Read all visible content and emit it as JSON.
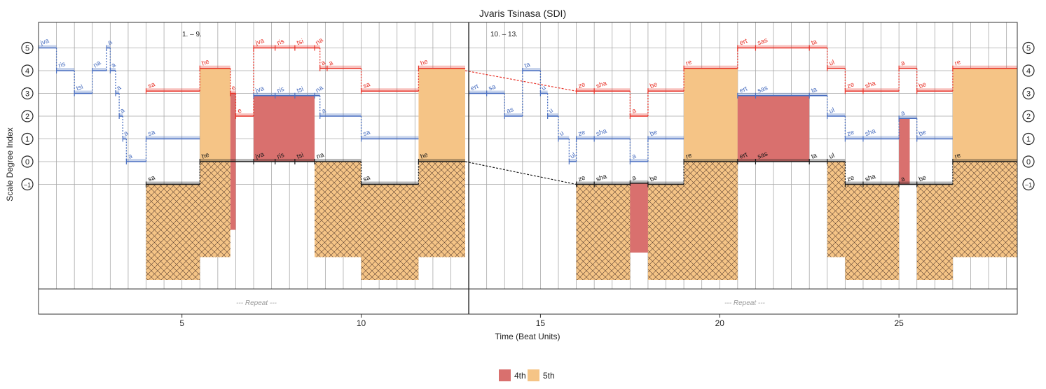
{
  "chart_data": {
    "type": "step-line",
    "title": "Jvaris  Tsinasa (SDI)",
    "xlabel": "Time (Beat Units)",
    "ylabel": "Scale Degree Index",
    "xlim": [
      1,
      28.3
    ],
    "ylim": [
      -5.5,
      6.3
    ],
    "x_ticks": [
      5,
      10,
      15,
      20,
      25
    ],
    "y_ticks": [
      5,
      4,
      3,
      2,
      1,
      0,
      -1
    ],
    "y_tick_labels": [
      "5",
      "4",
      "3",
      "2",
      "1",
      "0",
      "−1"
    ],
    "section_labels": [
      "1. – 9.",
      "10. – 13."
    ],
    "repeat_label": "--- Repeat ---",
    "legend": {
      "position": "bottom-center",
      "items": [
        {
          "name": "4th",
          "color": "#d9706e"
        },
        {
          "name": "5th",
          "color": "#f5c486"
        }
      ]
    },
    "colors": {
      "top": "#e8342a",
      "middle": "#4a6fc0",
      "bottom": "#1a1a1a",
      "fourth": "#d9706e",
      "fifth": "#f5c486",
      "grid": "#a8a8a8"
    },
    "series": [
      {
        "name": "top",
        "segments": [
          {
            "x0": 4.0,
            "x1": 5.5,
            "y": 3.1,
            "text": "sa"
          },
          {
            "x0": 5.5,
            "x1": 6.35,
            "y": 4.1,
            "text": "he"
          },
          {
            "x0": 6.35,
            "x1": 6.5,
            "y": 3.0,
            "text": "e"
          },
          {
            "x0": 6.5,
            "x1": 7.0,
            "y": 2.0,
            "text": "e"
          },
          {
            "x0": 7.0,
            "x1": 7.6,
            "y": 5.0,
            "text": "jva"
          },
          {
            "x0": 7.6,
            "x1": 8.15,
            "y": 5.0,
            "text": "ris"
          },
          {
            "x0": 8.15,
            "x1": 8.7,
            "y": 5.0,
            "text": "tsi"
          },
          {
            "x0": 8.7,
            "x1": 8.85,
            "y": 5.0,
            "text": "na"
          },
          {
            "x0": 8.85,
            "x1": 9.05,
            "y": 4.1,
            "text": "a"
          },
          {
            "x0": 9.05,
            "x1": 10.0,
            "y": 4.1,
            "text": "a"
          },
          {
            "x0": 10.0,
            "x1": 11.6,
            "y": 3.1,
            "text": "sa"
          },
          {
            "x0": 11.6,
            "x1": 12.9,
            "y": 4.1,
            "text": "he"
          },
          {
            "x0": 16.0,
            "x1": 16.5,
            "y": 3.1,
            "text": "ze"
          },
          {
            "x0": 16.5,
            "x1": 17.5,
            "y": 3.1,
            "text": "sha"
          },
          {
            "x0": 17.5,
            "x1": 18.0,
            "y": 2.0,
            "text": "a"
          },
          {
            "x0": 18.0,
            "x1": 19.0,
            "y": 3.1,
            "text": "be"
          },
          {
            "x0": 19.0,
            "x1": 20.5,
            "y": 4.1,
            "text": "re"
          },
          {
            "x0": 20.5,
            "x1": 21.0,
            "y": 5.0,
            "text": "ert"
          },
          {
            "x0": 21.0,
            "x1": 22.5,
            "y": 5.0,
            "text": "sas"
          },
          {
            "x0": 22.5,
            "x1": 23.0,
            "y": 5.0,
            "text": "ta"
          },
          {
            "x0": 23.0,
            "x1": 23.5,
            "y": 4.1,
            "text": "ul"
          },
          {
            "x0": 23.5,
            "x1": 24.0,
            "y": 3.1,
            "text": "ze"
          },
          {
            "x0": 24.0,
            "x1": 25.0,
            "y": 3.1,
            "text": "sha"
          },
          {
            "x0": 25.0,
            "x1": 25.5,
            "y": 4.1,
            "text": "a"
          },
          {
            "x0": 25.5,
            "x1": 26.5,
            "y": 3.1,
            "text": "be"
          },
          {
            "x0": 26.5,
            "x1": 28.3,
            "y": 4.1,
            "text": "re"
          }
        ]
      },
      {
        "name": "middle",
        "segments": [
          {
            "x0": 1.0,
            "x1": 1.5,
            "y": 5.0,
            "text": "jva"
          },
          {
            "x0": 1.5,
            "x1": 2.0,
            "y": 4.0,
            "text": "ris"
          },
          {
            "x0": 2.0,
            "x1": 2.5,
            "y": 3.0,
            "text": "tsi"
          },
          {
            "x0": 2.5,
            "x1": 2.9,
            "y": 4.0,
            "text": "na"
          },
          {
            "x0": 2.9,
            "x1": 3.0,
            "y": 5.0,
            "text": "a"
          },
          {
            "x0": 3.0,
            "x1": 3.15,
            "y": 4.0,
            "text": "a"
          },
          {
            "x0": 3.15,
            "x1": 3.25,
            "y": 3.0,
            "text": "a"
          },
          {
            "x0": 3.25,
            "x1": 3.35,
            "y": 2.0,
            "text": "a"
          },
          {
            "x0": 3.35,
            "x1": 3.45,
            "y": 1.0,
            "text": "a"
          },
          {
            "x0": 3.45,
            "x1": 4.0,
            "y": 0.0,
            "text": "a"
          },
          {
            "x0": 4.0,
            "x1": 5.5,
            "y": 1.0,
            "text": "sa"
          },
          {
            "x0": 7.0,
            "x1": 7.6,
            "y": 2.9,
            "text": "jva"
          },
          {
            "x0": 7.6,
            "x1": 8.15,
            "y": 2.9,
            "text": "ris"
          },
          {
            "x0": 8.15,
            "x1": 8.7,
            "y": 2.9,
            "text": "tsi"
          },
          {
            "x0": 8.7,
            "x1": 8.85,
            "y": 2.9,
            "text": "na"
          },
          {
            "x0": 8.85,
            "x1": 10.0,
            "y": 2.0,
            "text": "a"
          },
          {
            "x0": 10.0,
            "x1": 11.6,
            "y": 1.0,
            "text": "sa"
          },
          {
            "x0": 13.0,
            "x1": 13.5,
            "y": 3.0,
            "text": "ert"
          },
          {
            "x0": 13.5,
            "x1": 14.0,
            "y": 3.0,
            "text": "sa"
          },
          {
            "x0": 14.0,
            "x1": 14.5,
            "y": 2.0,
            "text": "as"
          },
          {
            "x0": 14.5,
            "x1": 15.0,
            "y": 4.0,
            "text": "ta"
          },
          {
            "x0": 15.0,
            "x1": 15.2,
            "y": 3.0,
            "text": "u"
          },
          {
            "x0": 15.2,
            "x1": 15.5,
            "y": 2.0,
            "text": "u"
          },
          {
            "x0": 15.5,
            "x1": 15.8,
            "y": 1.0,
            "text": "u"
          },
          {
            "x0": 15.8,
            "x1": 16.0,
            "y": 0.0,
            "text": "ul"
          },
          {
            "x0": 16.0,
            "x1": 16.5,
            "y": 1.0,
            "text": "ze"
          },
          {
            "x0": 16.5,
            "x1": 17.5,
            "y": 1.0,
            "text": "sha"
          },
          {
            "x0": 17.5,
            "x1": 18.0,
            "y": 0.0,
            "text": "a"
          },
          {
            "x0": 18.0,
            "x1": 19.0,
            "y": 1.0,
            "text": "be"
          },
          {
            "x0": 20.5,
            "x1": 21.0,
            "y": 2.9,
            "text": "ert"
          },
          {
            "x0": 21.0,
            "x1": 22.5,
            "y": 2.9,
            "text": "sas"
          },
          {
            "x0": 22.5,
            "x1": 23.0,
            "y": 2.9,
            "text": "ta"
          },
          {
            "x0": 23.0,
            "x1": 23.5,
            "y": 2.0,
            "text": "ul"
          },
          {
            "x0": 23.5,
            "x1": 24.0,
            "y": 1.0,
            "text": "ze"
          },
          {
            "x0": 24.0,
            "x1": 25.0,
            "y": 1.0,
            "text": "sha"
          },
          {
            "x0": 25.0,
            "x1": 25.5,
            "y": 1.9,
            "text": "a"
          },
          {
            "x0": 25.5,
            "x1": 26.5,
            "y": 1.0,
            "text": "be"
          }
        ]
      },
      {
        "name": "bottom",
        "segments": [
          {
            "x0": 4.0,
            "x1": 5.5,
            "y": -1.0,
            "text": "sa"
          },
          {
            "x0": 5.5,
            "x1": 7.0,
            "y": 0.0,
            "text": "he"
          },
          {
            "x0": 7.0,
            "x1": 7.6,
            "y": 0.0,
            "text": "jva"
          },
          {
            "x0": 7.6,
            "x1": 8.15,
            "y": 0.0,
            "text": "ris"
          },
          {
            "x0": 8.15,
            "x1": 8.7,
            "y": 0.0,
            "text": "tsi"
          },
          {
            "x0": 8.7,
            "x1": 10.0,
            "y": 0.0,
            "text": "na"
          },
          {
            "x0": 10.0,
            "x1": 11.6,
            "y": -1.0,
            "text": "sa"
          },
          {
            "x0": 11.6,
            "x1": 12.9,
            "y": 0.0,
            "text": "he"
          },
          {
            "x0": 16.0,
            "x1": 16.5,
            "y": -1.0,
            "text": "ze"
          },
          {
            "x0": 16.5,
            "x1": 17.5,
            "y": -1.0,
            "text": "sha"
          },
          {
            "x0": 17.5,
            "x1": 18.0,
            "y": -0.95,
            "text": "a"
          },
          {
            "x0": 18.0,
            "x1": 19.0,
            "y": -1.0,
            "text": "be"
          },
          {
            "x0": 19.0,
            "x1": 20.5,
            "y": 0.0,
            "text": "re"
          },
          {
            "x0": 20.5,
            "x1": 21.0,
            "y": 0.0,
            "text": "ert"
          },
          {
            "x0": 21.0,
            "x1": 22.5,
            "y": 0.0,
            "text": "sas"
          },
          {
            "x0": 22.5,
            "x1": 23.0,
            "y": 0.0,
            "text": "ta"
          },
          {
            "x0": 23.0,
            "x1": 23.5,
            "y": 0.0,
            "text": "ul"
          },
          {
            "x0": 23.5,
            "x1": 24.0,
            "y": -1.0,
            "text": "ze"
          },
          {
            "x0": 24.0,
            "x1": 25.0,
            "y": -1.0,
            "text": "sha"
          },
          {
            "x0": 25.0,
            "x1": 25.5,
            "y": -1.0,
            "text": "a"
          },
          {
            "x0": 25.5,
            "x1": 26.5,
            "y": -1.0,
            "text": "be"
          },
          {
            "x0": 26.5,
            "x1": 28.3,
            "y": 0.0,
            "text": "re"
          }
        ]
      }
    ],
    "interval_areas": [
      {
        "x0": 5.5,
        "x1": 6.35,
        "y0": 0,
        "y1": 4.1,
        "kind": "5th"
      },
      {
        "x0": 6.35,
        "x1": 6.5,
        "y0": -3.0,
        "y1": 3.0,
        "kind": "4th"
      },
      {
        "x0": 7.0,
        "x1": 8.7,
        "y0": 0,
        "y1": 2.9,
        "kind": "4th"
      },
      {
        "x0": 11.6,
        "x1": 12.9,
        "y0": 0,
        "y1": 4.1,
        "kind": "5th"
      },
      {
        "x0": 19.0,
        "x1": 20.5,
        "y0": 0,
        "y1": 4.1,
        "kind": "5th"
      },
      {
        "x0": 20.5,
        "x1": 22.5,
        "y0": 0,
        "y1": 2.9,
        "kind": "4th"
      },
      {
        "x0": 25.0,
        "x1": 25.3,
        "y0": -1.0,
        "y1": 1.9,
        "kind": "4th"
      },
      {
        "x0": 26.5,
        "x1": 28.3,
        "y0": 0,
        "y1": 4.1,
        "kind": "5th"
      }
    ],
    "hatched_areas": [
      {
        "x0": 4.0,
        "x1": 5.5,
        "y0": -5.2,
        "y1": -1.0,
        "kind": "5th"
      },
      {
        "x0": 5.5,
        "x1": 6.35,
        "y0": -4.2,
        "y1": 0,
        "kind": "5th"
      },
      {
        "x0": 8.7,
        "x1": 10.0,
        "y0": -4.2,
        "y1": 0,
        "kind": "5th"
      },
      {
        "x0": 10.0,
        "x1": 11.6,
        "y0": -5.2,
        "y1": -1.0,
        "kind": "5th"
      },
      {
        "x0": 11.6,
        "x1": 12.9,
        "y0": -4.2,
        "y1": 0,
        "kind": "5th"
      },
      {
        "x0": 16.0,
        "x1": 16.5,
        "y0": -5.2,
        "y1": -1.0,
        "kind": "5th"
      },
      {
        "x0": 16.5,
        "x1": 17.5,
        "y0": -5.2,
        "y1": -1.0,
        "kind": "5th"
      },
      {
        "x0": 17.5,
        "x1": 18.0,
        "y0": -4.0,
        "y1": -0.95,
        "kind": "4th"
      },
      {
        "x0": 18.0,
        "x1": 19.0,
        "y0": -5.2,
        "y1": -1.0,
        "kind": "5th"
      },
      {
        "x0": 19.0,
        "x1": 20.5,
        "y0": -5.2,
        "y1": 0,
        "kind": "5th"
      },
      {
        "x0": 23.0,
        "x1": 23.5,
        "y0": -4.2,
        "y1": 0,
        "kind": "5th"
      },
      {
        "x0": 23.5,
        "x1": 25.0,
        "y0": -5.2,
        "y1": -1.0,
        "kind": "5th"
      },
      {
        "x0": 25.5,
        "x1": 26.5,
        "y0": -5.2,
        "y1": -1.0,
        "kind": "5th"
      },
      {
        "x0": 26.5,
        "x1": 28.3,
        "y0": -4.2,
        "y1": 0,
        "kind": "5th"
      }
    ],
    "connectors": [
      {
        "x0": 12.9,
        "y0": 4.0,
        "x1": 16.0,
        "y1": 3.1,
        "series": "top"
      },
      {
        "x0": 12.9,
        "y0": 0.0,
        "x1": 16.0,
        "y1": -1.0,
        "series": "bottom"
      }
    ]
  }
}
